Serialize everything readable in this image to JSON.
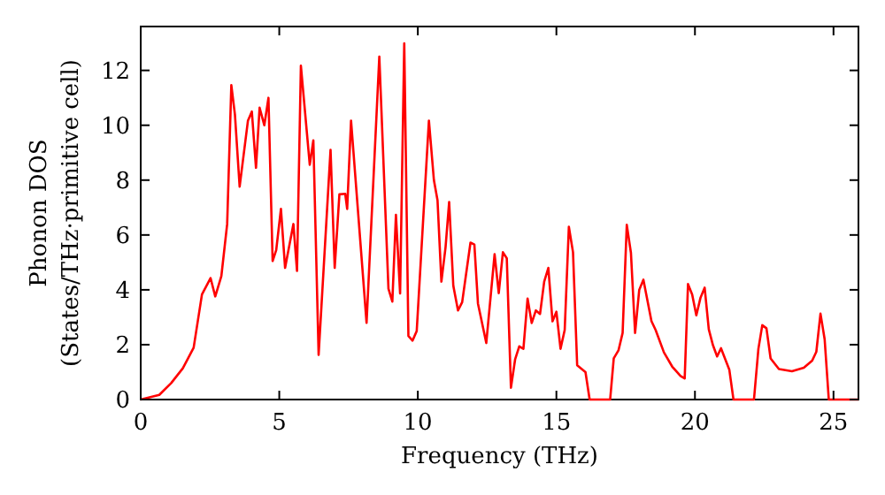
{
  "chart_data": {
    "type": "line",
    "xlabel": "Frequency (THz)",
    "ylabel": "Phonon DOS\n(States/THz·primitive cell)",
    "xlim": [
      0,
      25.9
    ],
    "ylim": [
      0,
      13.6
    ],
    "xticks": [
      0,
      5,
      10,
      15,
      20,
      25
    ],
    "yticks": [
      0,
      2,
      4,
      6,
      8,
      10,
      12
    ],
    "grid": false,
    "marker": "none",
    "line_style": "solid",
    "series": [
      {
        "color": "#ff0000",
        "x": [
          0,
          0.67,
          1.1,
          1.52,
          1.91,
          2.21,
          2.52,
          2.69,
          2.91,
          3.12,
          3.27,
          3.4,
          3.57,
          3.87,
          4.01,
          4.16,
          4.29,
          4.46,
          4.61,
          4.76,
          4.89,
          5.06,
          5.21,
          5.51,
          5.64,
          5.78,
          6.1,
          6.23,
          6.42,
          6.85,
          7.0,
          7.17,
          7.38,
          7.45,
          7.59,
          8.15,
          8.61,
          8.94,
          9.08,
          9.21,
          9.36,
          9.51,
          9.66,
          9.81,
          9.96,
          10.4,
          10.58,
          10.71,
          10.85,
          11.0,
          11.13,
          11.28,
          11.45,
          11.6,
          11.9,
          12.04,
          12.17,
          12.47,
          12.77,
          12.92,
          13.07,
          13.21,
          13.36,
          13.51,
          13.66,
          13.81,
          13.96,
          14.11,
          14.26,
          14.41,
          14.56,
          14.71,
          14.86,
          15.0,
          15.15,
          15.3,
          15.45,
          15.6,
          15.75,
          16.05,
          16.2,
          16.94,
          17.07,
          17.24,
          17.39,
          17.54,
          17.69,
          17.84,
          17.99,
          18.14,
          18.43,
          18.58,
          18.88,
          19.18,
          19.48,
          19.63,
          19.75,
          19.9,
          20.05,
          20.2,
          20.35,
          20.5,
          20.65,
          20.8,
          20.94,
          21.24,
          21.39,
          22.13,
          22.29,
          22.43,
          22.58,
          22.73,
          23.03,
          23.5,
          23.93,
          24.23,
          24.38,
          24.53,
          24.68,
          24.83,
          25.9
        ],
        "values": [
          0,
          0.17,
          0.6,
          1.14,
          1.89,
          3.83,
          4.43,
          3.76,
          4.5,
          6.4,
          11.46,
          10.39,
          7.76,
          10.17,
          10.5,
          8.45,
          10.64,
          10.0,
          11.0,
          5.05,
          5.45,
          6.95,
          4.8,
          6.4,
          4.69,
          12.17,
          8.56,
          9.45,
          1.63,
          9.1,
          4.8,
          7.48,
          7.5,
          6.95,
          10.17,
          2.8,
          12.5,
          4.04,
          3.57,
          6.73,
          3.87,
          12.99,
          2.32,
          2.15,
          2.5,
          10.17,
          8.0,
          7.27,
          4.3,
          5.55,
          7.2,
          4.15,
          3.25,
          3.55,
          5.72,
          5.65,
          3.5,
          2.06,
          5.3,
          3.88,
          5.37,
          5.15,
          0.43,
          1.46,
          1.94,
          1.85,
          3.68,
          2.79,
          3.25,
          3.12,
          4.3,
          4.8,
          2.85,
          3.2,
          1.85,
          2.54,
          6.3,
          5.37,
          1.25,
          1.0,
          0,
          0,
          1.5,
          1.79,
          2.43,
          6.37,
          5.35,
          2.43,
          4.0,
          4.37,
          2.86,
          2.54,
          1.72,
          1.2,
          0.86,
          0.77,
          4.21,
          3.83,
          3.07,
          3.71,
          4.08,
          2.56,
          1.98,
          1.57,
          1.87,
          1.09,
          0,
          0,
          1.85,
          2.71,
          2.6,
          1.5,
          1.11,
          1.03,
          1.16,
          1.42,
          1.74,
          3.13,
          2.2,
          0,
          0
        ]
      }
    ]
  }
}
